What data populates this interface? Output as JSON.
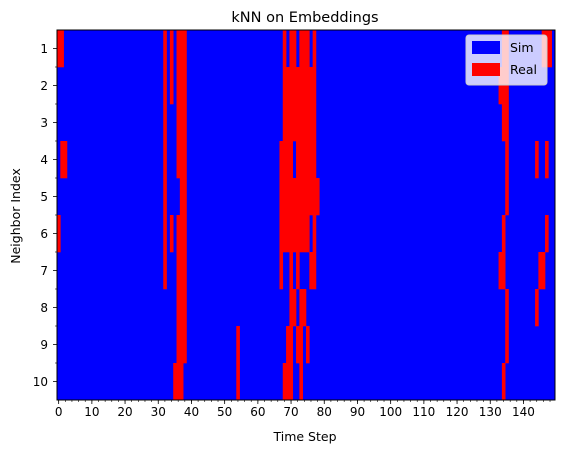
{
  "chart_data": {
    "type": "heatmap",
    "title": "kNN on Embeddings",
    "xlabel": "Time Step",
    "ylabel": "Neighbor Index",
    "x_range": [
      0,
      149
    ],
    "x_ticks": [
      0,
      10,
      20,
      30,
      40,
      50,
      60,
      70,
      80,
      90,
      100,
      110,
      120,
      130,
      140
    ],
    "x_minor_tick_step": 2,
    "y_categories": [
      "1",
      "2",
      "3",
      "4",
      "5",
      "6",
      "7",
      "8",
      "9",
      "10"
    ],
    "grid": false,
    "legend_position": "top-right",
    "classes": [
      {
        "name": "Sim",
        "color": "#0000ff"
      },
      {
        "name": "Real",
        "color": "#ff0000"
      }
    ],
    "background_class": "Sim",
    "real_segments_by_neighbor": [
      [
        [
          0,
          1
        ],
        [
          32,
          32
        ],
        [
          34,
          34
        ],
        [
          36,
          38
        ],
        [
          68,
          68
        ],
        [
          70,
          70
        ],
        [
          71,
          71
        ],
        [
          73,
          75
        ],
        [
          77,
          77
        ],
        [
          134,
          135
        ],
        [
          146,
          148
        ]
      ],
      [
        [
          32,
          32
        ],
        [
          34,
          34
        ],
        [
          36,
          38
        ],
        [
          68,
          77
        ],
        [
          133,
          135
        ]
      ],
      [
        [
          32,
          32
        ],
        [
          36,
          38
        ],
        [
          68,
          70
        ],
        [
          71,
          77
        ],
        [
          134,
          135
        ]
      ],
      [
        [
          1,
          2
        ],
        [
          32,
          32
        ],
        [
          36,
          38
        ],
        [
          67,
          70
        ],
        [
          72,
          77
        ],
        [
          135,
          135
        ],
        [
          144,
          144
        ],
        [
          147,
          147
        ]
      ],
      [
        [
          32,
          32
        ],
        [
          37,
          38
        ],
        [
          67,
          78
        ],
        [
          135,
          135
        ]
      ],
      [
        [
          0,
          0
        ],
        [
          32,
          32
        ],
        [
          34,
          34
        ],
        [
          36,
          38
        ],
        [
          67,
          75
        ],
        [
          77,
          77
        ],
        [
          134,
          134
        ],
        [
          147,
          147
        ]
      ],
      [
        [
          32,
          32
        ],
        [
          36,
          38
        ],
        [
          67,
          67
        ],
        [
          70,
          70
        ],
        [
          72,
          72
        ],
        [
          76,
          77
        ],
        [
          133,
          134
        ],
        [
          145,
          146
        ]
      ],
      [
        [
          36,
          38
        ],
        [
          70,
          70
        ],
        [
          71,
          71
        ],
        [
          73,
          74
        ],
        [
          135,
          135
        ],
        [
          144,
          144
        ]
      ],
      [
        [
          36,
          38
        ],
        [
          54,
          54
        ],
        [
          69,
          70
        ],
        [
          72,
          73
        ],
        [
          75,
          75
        ],
        [
          135,
          135
        ]
      ],
      [
        [
          35,
          37
        ],
        [
          54,
          54
        ],
        [
          68,
          70
        ],
        [
          73,
          73
        ],
        [
          134,
          134
        ]
      ]
    ]
  }
}
